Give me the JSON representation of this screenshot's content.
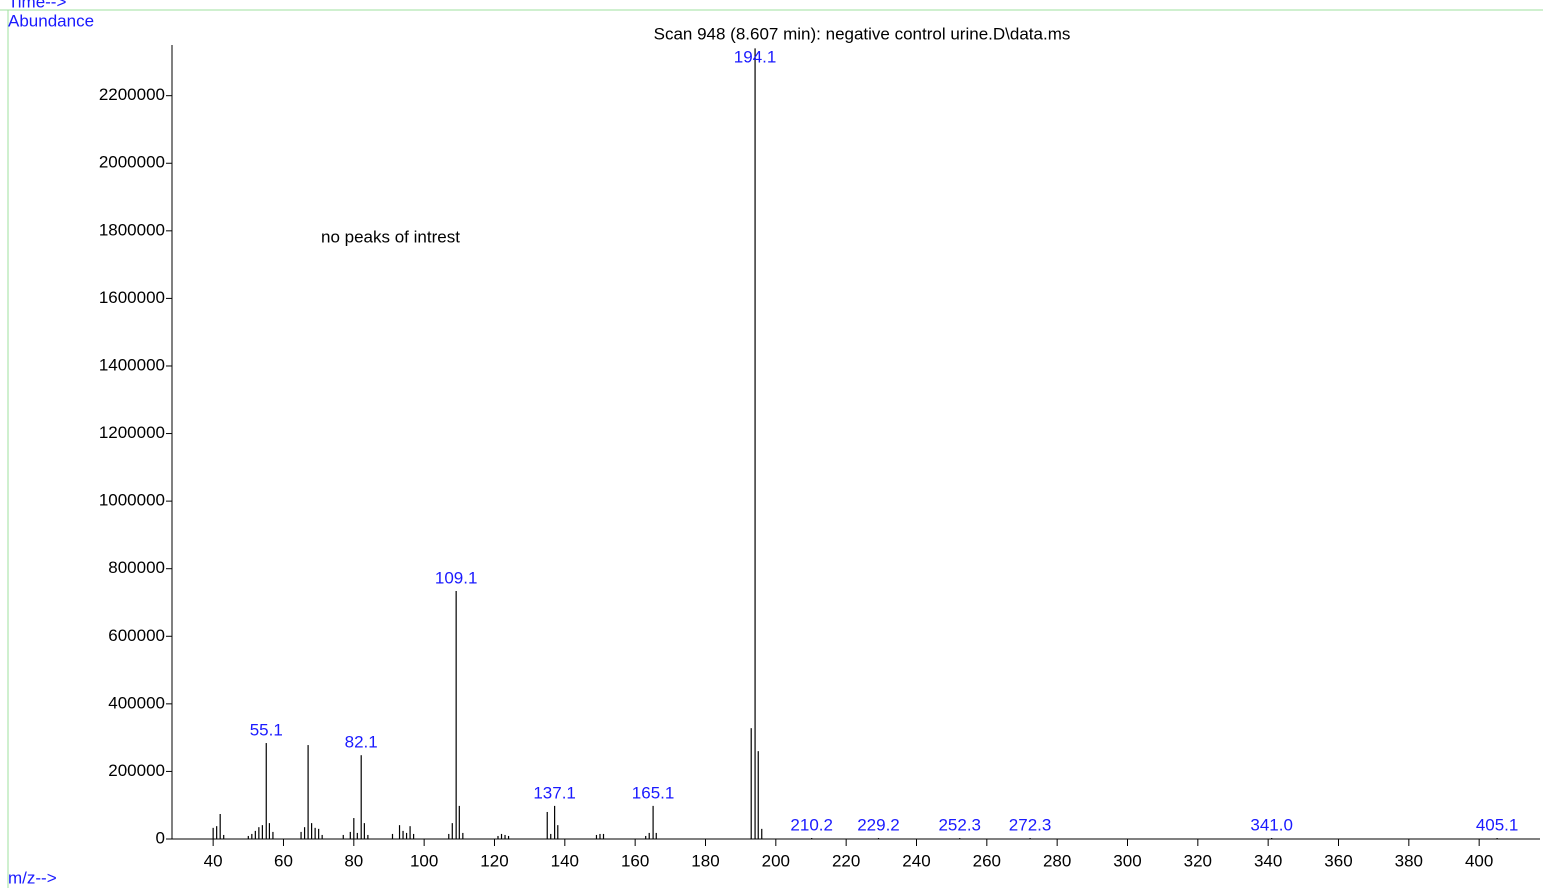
{
  "chart_data": {
    "type": "spectrum",
    "corner_label": "Time-->",
    "y_axis_label": "Abundance",
    "x_axis_label": "m/z-->",
    "title": "Scan 948 (8.607 min): negative control urine.D\\data.ms",
    "annotation": "no peaks of intrest",
    "color": "#000000",
    "label_color": "#1a1aff",
    "x": [
      40,
      41,
      42,
      43,
      50,
      51,
      52,
      53,
      54,
      55.1,
      56,
      57,
      65,
      66,
      67,
      68,
      69,
      70,
      71,
      77,
      79,
      80,
      81,
      82.1,
      83,
      84,
      91,
      93,
      94,
      95,
      96,
      97,
      107,
      108,
      109.1,
      110,
      111,
      121,
      122,
      123,
      124,
      135,
      136,
      137.1,
      138,
      149,
      150,
      151,
      163,
      164,
      165.1,
      166,
      193,
      194.1,
      195,
      196,
      210.2,
      229.2,
      252.3,
      272.3,
      341.0,
      405.1
    ],
    "values": [
      33000,
      38000,
      74000,
      12000,
      9000,
      15000,
      24000,
      35000,
      41000,
      284000,
      47000,
      21000,
      21000,
      35000,
      278000,
      47000,
      33000,
      30000,
      12000,
      12000,
      21000,
      62000,
      18000,
      248000,
      47000,
      12000,
      15000,
      41000,
      24000,
      18000,
      38000,
      15000,
      15000,
      47000,
      734000,
      98000,
      18000,
      9000,
      15000,
      12000,
      9000,
      80000,
      15000,
      98000,
      41000,
      12000,
      15000,
      15000,
      9000,
      18000,
      98000,
      18000,
      328000,
      2340000,
      260000,
      30000,
      3000,
      3000,
      3000,
      3000,
      3000,
      3000
    ],
    "x_labels": [
      null,
      null,
      null,
      null,
      null,
      null,
      null,
      null,
      null,
      "55.1",
      null,
      null,
      null,
      null,
      null,
      null,
      null,
      null,
      null,
      null,
      null,
      null,
      null,
      "82.1",
      null,
      null,
      null,
      null,
      null,
      null,
      null,
      null,
      null,
      null,
      "109.1",
      null,
      null,
      null,
      null,
      null,
      null,
      null,
      null,
      "137.1",
      null,
      null,
      null,
      null,
      null,
      null,
      "165.1",
      null,
      null,
      "194.1",
      null,
      null,
      "210.2",
      "229.2",
      "252.3",
      "272.3",
      "341.0",
      "405.1"
    ],
    "xlim": [
      28.3,
      417.3
    ],
    "xticks": [
      40,
      60,
      80,
      100,
      120,
      140,
      160,
      180,
      200,
      220,
      240,
      260,
      280,
      300,
      320,
      340,
      360,
      380,
      400
    ],
    "ylim": [
      0,
      2350000
    ],
    "yticks": [
      0,
      200000,
      400000,
      600000,
      800000,
      1000000,
      1200000,
      1400000,
      1600000,
      1800000,
      2000000,
      2200000
    ]
  }
}
